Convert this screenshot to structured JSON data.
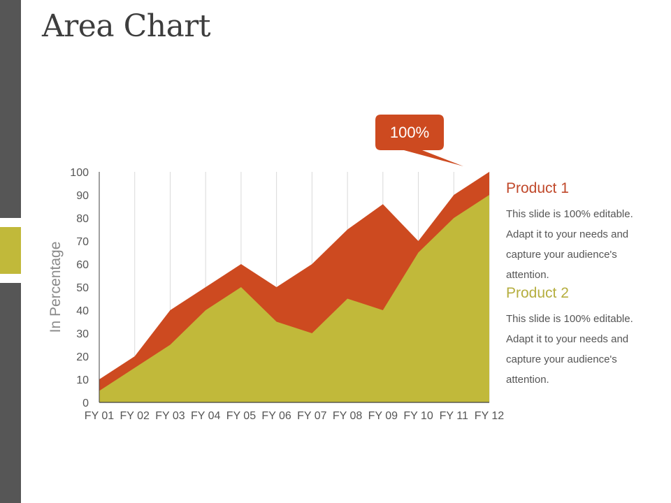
{
  "slide": {
    "title": "Area Chart"
  },
  "colors": {
    "product1": "#cd4a20",
    "product2": "#c1b93a",
    "sidebar": "#565656",
    "sidebar_accent": "#c1b93a",
    "text": "#555555",
    "gridline": "#d9d9d9"
  },
  "callout": {
    "label": "100%"
  },
  "legend": [
    {
      "title": "Product 1",
      "color": "#c0482a",
      "body": "This slide is 100% editable. Adapt it to your needs and capture your audience's attention."
    },
    {
      "title": "Product 2",
      "color": "#b5ae3f",
      "body": "This slide is 100% editable. Adapt it to your needs and capture your audience's attention."
    }
  ],
  "chart_data": {
    "type": "area",
    "title": "Area Chart",
    "xlabel": "",
    "ylabel": "In Percentage",
    "categories": [
      "FY 01",
      "FY 02",
      "FY 03",
      "FY 04",
      "FY 05",
      "FY 06",
      "FY 07",
      "FY 08",
      "FY 09",
      "FY 10",
      "FY 11",
      "FY 12"
    ],
    "series": [
      {
        "name": "Product 1",
        "color": "#cd4a20",
        "values": [
          10,
          20,
          40,
          50,
          60,
          50,
          60,
          75,
          86,
          70,
          90,
          100
        ]
      },
      {
        "name": "Product 2",
        "color": "#c1b93a",
        "values": [
          5,
          15,
          25,
          40,
          50,
          35,
          30,
          45,
          40,
          65,
          80,
          90
        ]
      }
    ],
    "ylim": [
      0,
      100
    ],
    "yticks": [
      0,
      10,
      20,
      30,
      40,
      50,
      60,
      70,
      80,
      90,
      100
    ],
    "grid": "vertical",
    "legend_position": "right",
    "annotations": [
      {
        "text": "100%",
        "target": "FY 12",
        "value": 100
      }
    ]
  }
}
